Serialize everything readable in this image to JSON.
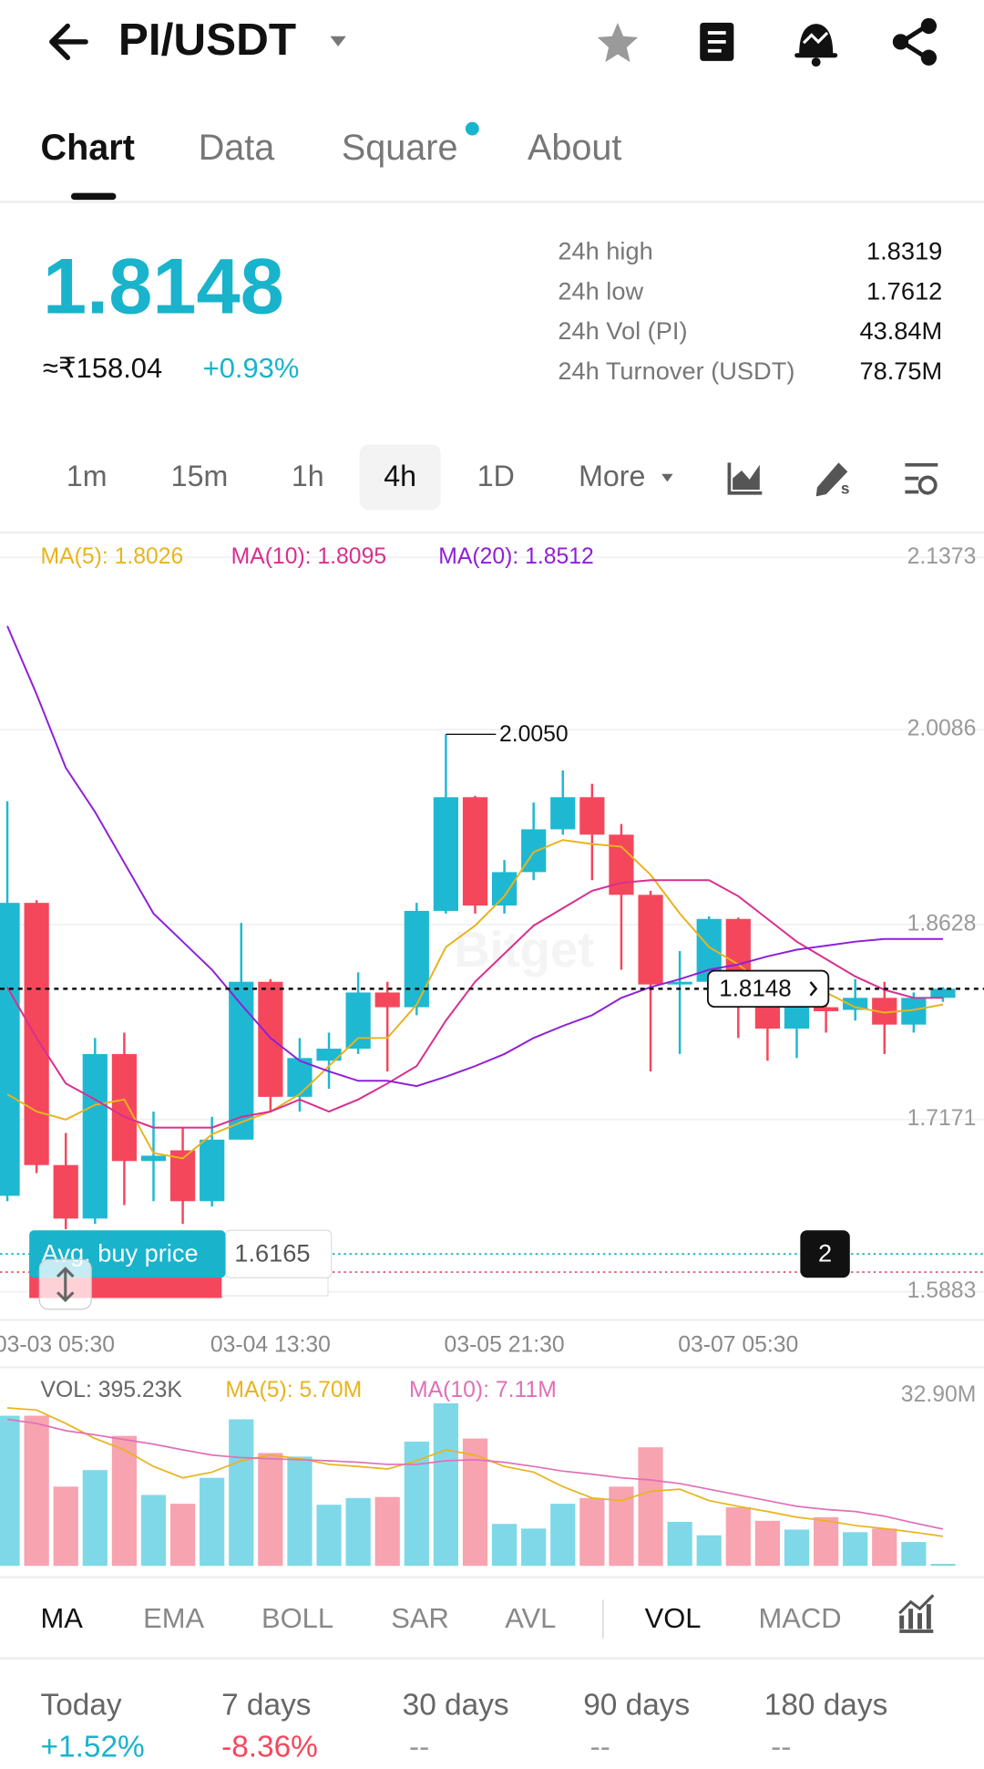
{
  "header": {
    "title": "PI/USDT"
  },
  "tabs": [
    "Chart",
    "Data",
    "Square",
    "About"
  ],
  "price": {
    "last": "1.8148",
    "fiat": "≈₹158.04",
    "change": "+0.93%"
  },
  "stats": [
    [
      "24h high",
      "1.8319"
    ],
    [
      "24h low",
      "1.7612"
    ],
    [
      "24h Vol (PI)",
      "43.84M"
    ],
    [
      "24h Turnover (USDT)",
      "78.75M"
    ]
  ],
  "intervals": [
    "1m",
    "15m",
    "1h",
    "4h",
    "1D",
    "More"
  ],
  "indicators": [
    "MA",
    "EMA",
    "BOLL",
    "SAR",
    "AVL",
    "VOL",
    "MACD"
  ],
  "performance": [
    [
      "Today",
      "+1.52%"
    ],
    [
      "7 days",
      "-8.36%"
    ],
    [
      "30 days",
      "--"
    ],
    [
      "90 days",
      "--"
    ],
    [
      "180 days",
      "--"
    ]
  ],
  "chart_data": [
    {
      "type": "candlestick",
      "watermark": "Bitget",
      "categories": [
        null,
        "03-03 05:30",
        null,
        null,
        null,
        null,
        null,
        null,
        null,
        "03-04 13:30",
        null,
        null,
        null,
        null,
        null,
        null,
        null,
        "03-05 21:30",
        null,
        null,
        null,
        null,
        null,
        null,
        null,
        "03-07 05:30",
        null,
        null,
        null,
        null,
        null,
        null,
        null
      ],
      "open": [
        1.66,
        1.879,
        1.683,
        1.643,
        1.766,
        1.686,
        1.694,
        1.656,
        1.702,
        1.82,
        1.734,
        1.761,
        1.77,
        1.812,
        1.801,
        1.873,
        1.958,
        1.877,
        1.902,
        1.934,
        1.958,
        1.93,
        1.885,
        1.818,
        1.82,
        1.867,
        1.801,
        1.785,
        1.801,
        1.799,
        1.808,
        1.788,
        1.808
      ],
      "high": [
        1.955,
        1.881,
        1.707,
        1.778,
        1.782,
        1.723,
        1.711,
        1.719,
        1.864,
        1.822,
        1.778,
        1.782,
        1.827,
        1.82,
        1.879,
        2.005,
        1.959,
        1.911,
        1.954,
        1.978,
        1.968,
        1.938,
        1.888,
        1.843,
        1.869,
        1.868,
        1.812,
        1.812,
        1.812,
        1.822,
        1.82,
        1.812,
        1.816
      ],
      "low": [
        1.656,
        1.677,
        1.635,
        1.639,
        1.653,
        1.656,
        1.639,
        1.652,
        1.702,
        1.723,
        1.723,
        1.74,
        1.766,
        1.753,
        1.795,
        1.871,
        1.871,
        1.871,
        1.896,
        1.93,
        1.896,
        1.829,
        1.753,
        1.766,
        1.816,
        1.778,
        1.761,
        1.763,
        1.782,
        1.791,
        1.766,
        1.782,
        1.805
      ],
      "close": [
        1.879,
        1.683,
        1.643,
        1.766,
        1.686,
        1.69,
        1.656,
        1.702,
        1.82,
        1.734,
        1.763,
        1.77,
        1.812,
        1.801,
        1.873,
        1.958,
        1.877,
        1.902,
        1.934,
        1.958,
        1.93,
        1.885,
        1.818,
        1.82,
        1.867,
        1.801,
        1.785,
        1.801,
        1.798,
        1.808,
        1.788,
        1.808,
        1.8148
      ],
      "up_color": "#1fb8d2",
      "down_color": "#f5475c",
      "series": [
        {
          "name": "MA(5): 1.8026",
          "color": "#e8b41d",
          "values": [
            1.736,
            1.723,
            1.717,
            1.728,
            1.732,
            1.692,
            1.688,
            1.706,
            1.715,
            1.723,
            1.736,
            1.757,
            1.778,
            1.778,
            1.803,
            1.846,
            1.862,
            1.884,
            1.917,
            1.926,
            1.923,
            1.921,
            1.9,
            1.871,
            1.846,
            1.833,
            1.816,
            1.808,
            1.812,
            1.801,
            1.797,
            1.799,
            1.803
          ]
        },
        {
          "name": "MA(10): 1.8095",
          "color": "#d82f8f",
          "values": [
            1.816,
            1.778,
            1.744,
            1.732,
            1.719,
            1.711,
            1.711,
            1.711,
            1.719,
            1.723,
            1.732,
            1.723,
            1.732,
            1.744,
            1.757,
            1.791,
            1.82,
            1.841,
            1.862,
            1.875,
            1.888,
            1.894,
            1.896,
            1.896,
            1.896,
            1.884,
            1.867,
            1.85,
            1.837,
            1.824,
            1.814,
            1.808,
            1.808
          ]
        },
        {
          "name": "MA(20): 1.8512",
          "color": "#8f20d6",
          "values": [
            2.086,
            2.035,
            1.98,
            1.947,
            1.909,
            1.871,
            1.85,
            1.829,
            1.803,
            1.778,
            1.761,
            1.753,
            1.746,
            1.746,
            1.742,
            1.749,
            1.757,
            1.766,
            1.778,
            1.787,
            1.795,
            1.808,
            1.816,
            1.822,
            1.829,
            1.833,
            1.839,
            1.844,
            1.847,
            1.85,
            1.852,
            1.852,
            1.852
          ]
        }
      ],
      "ylim": [
        1.5883,
        2.1373
      ],
      "yticks": [
        2.1373,
        2.0086,
        1.8628,
        1.7171,
        1.5883
      ],
      "grid": true,
      "high_label": {
        "value": 2.005,
        "label": "2.0050"
      },
      "last_price": 1.8148,
      "avg_buy": {
        "label": "Avg. buy price",
        "value": 1.6165
      },
      "sell_line": 1.603,
      "badge": "2"
    },
    {
      "type": "bar",
      "title": "VOL: 395.23K",
      "values": [
        29.0,
        29.0,
        15.3,
        18.5,
        25.1,
        13.7,
        12.0,
        17.0,
        28.3,
        21.8,
        21.1,
        11.8,
        13.1,
        13.3,
        24.0,
        31.4,
        24.6,
        8.1,
        7.2,
        12.0,
        13.1,
        15.3,
        22.9,
        8.5,
        5.9,
        11.3,
        8.7,
        7.0,
        9.4,
        6.5,
        7.2,
        4.6,
        0.395
      ],
      "up_color": "#7fd8e8",
      "down_color": "#f7a3b0",
      "series": [
        {
          "name": "MA(5): 5.70M",
          "color": "#e8b41d",
          "values": [
            30.5,
            30.1,
            27.5,
            24.6,
            22.4,
            19.2,
            17.0,
            18.1,
            20.3,
            21.4,
            20.7,
            19.6,
            19.2,
            18.7,
            20.3,
            22.4,
            21.4,
            19.2,
            18.1,
            15.3,
            13.1,
            12.6,
            14.4,
            14.8,
            12.6,
            11.5,
            10.5,
            9.4,
            8.7,
            7.8,
            7.2,
            6.5,
            5.7
          ]
        },
        {
          "name": "MA(10): 7.11M",
          "color": "#e070b8",
          "values": [
            28.3,
            27.5,
            26.1,
            25.3,
            24.4,
            23.5,
            22.4,
            21.4,
            20.9,
            20.7,
            20.5,
            20.3,
            20.0,
            19.6,
            19.6,
            20.3,
            20.5,
            20.0,
            19.2,
            18.3,
            17.7,
            17.0,
            16.6,
            15.9,
            14.8,
            13.7,
            12.6,
            11.5,
            10.9,
            10.5,
            9.6,
            8.3,
            7.11
          ]
        }
      ],
      "ylim": [
        0,
        32.9
      ],
      "yticks": [
        {
          "value": 32.9,
          "label": "32.90M"
        }
      ]
    }
  ]
}
